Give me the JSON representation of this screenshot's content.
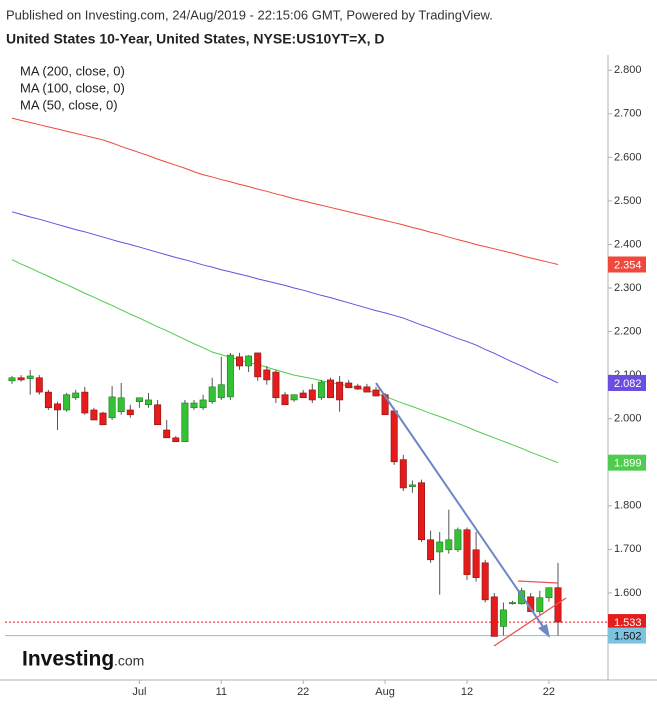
{
  "chart_data": {
    "type": "candlestick",
    "subtitle": "Published on Investing.com, 24/Aug/2019 - 22:15:06 GMT, Powered by TradingView.",
    "title": "United States 10-Year, United States, NYSE:US10YT=X, D",
    "categories": [
      null,
      null,
      null,
      null,
      null,
      null,
      null,
      null,
      null,
      null,
      null,
      null,
      null,
      null,
      "Jul",
      null,
      null,
      null,
      null,
      null,
      null,
      null,
      null,
      "11",
      null,
      null,
      null,
      null,
      null,
      null,
      null,
      null,
      "22",
      null,
      null,
      null,
      null,
      null,
      null,
      null,
      null,
      "Aug",
      null,
      null,
      null,
      null,
      null,
      null,
      null,
      null,
      "12",
      null,
      null,
      null,
      null,
      null,
      null,
      null,
      null,
      "22",
      null
    ],
    "open": [
      2.087,
      2.094,
      2.092,
      2.094,
      2.061,
      2.034,
      2.02,
      2.048,
      2.061,
      2.02,
      2.013,
      2.002,
      2.016,
      2.02,
      2.039,
      2.032,
      2.032,
      1.974,
      1.956,
      1.947,
      2.025,
      2.025,
      2.039,
      2.048,
      2.05,
      2.142,
      2.121,
      2.151,
      2.112,
      2.107,
      2.055,
      2.043,
      2.059,
      2.066,
      2.048,
      2.089,
      2.084,
      2.082,
      2.075,
      2.073,
      2.066,
      2.055,
      2.018,
      1.906,
      1.844,
      1.853,
      1.722,
      1.694,
      1.699,
      1.699,
      1.745,
      1.699,
      1.669,
      1.591,
      1.523,
      1.575,
      1.575,
      1.591,
      1.557,
      1.589,
      1.612
    ],
    "high": [
      2.098,
      2.1,
      2.112,
      2.1,
      2.066,
      2.039,
      2.059,
      2.066,
      2.073,
      2.025,
      2.016,
      2.075,
      2.082,
      2.032,
      2.048,
      2.059,
      2.043,
      1.997,
      1.96,
      2.043,
      2.043,
      2.055,
      2.094,
      2.142,
      2.151,
      2.151,
      2.146,
      2.151,
      2.121,
      2.112,
      2.061,
      2.055,
      2.066,
      2.08,
      2.089,
      2.094,
      2.098,
      2.089,
      2.08,
      2.08,
      2.073,
      2.059,
      2.025,
      1.917,
      1.858,
      1.86,
      1.743,
      1.74,
      1.791,
      1.75,
      1.75,
      1.74,
      1.676,
      1.6,
      1.578,
      1.582,
      1.612,
      1.6,
      1.605,
      1.612,
      1.669
    ],
    "low": [
      2.08,
      2.085,
      2.055,
      2.055,
      2.02,
      1.974,
      2.016,
      2.043,
      2.009,
      1.997,
      1.986,
      1.997,
      2.009,
      2.002,
      2.025,
      2.025,
      1.986,
      1.956,
      1.947,
      1.947,
      2.02,
      2.02,
      2.034,
      2.043,
      2.043,
      2.112,
      2.107,
      2.087,
      2.078,
      2.036,
      2.032,
      2.039,
      2.048,
      2.036,
      2.043,
      2.048,
      2.016,
      2.075,
      2.066,
      2.061,
      2.052,
      2.009,
      1.894,
      1.834,
      1.83,
      1.717,
      1.669,
      1.596,
      1.69,
      1.694,
      1.63,
      1.626,
      1.578,
      1.502,
      1.502,
      1.573,
      1.573,
      1.557,
      1.55,
      1.58,
      1.502
    ],
    "close": [
      2.094,
      2.089,
      2.098,
      2.061,
      2.025,
      2.02,
      2.055,
      2.059,
      2.013,
      1.997,
      1.986,
      2.05,
      2.048,
      2.009,
      2.048,
      2.043,
      1.986,
      1.956,
      1.947,
      2.036,
      2.036,
      2.043,
      2.073,
      2.078,
      2.146,
      2.121,
      2.144,
      2.096,
      2.089,
      2.048,
      2.032,
      2.055,
      2.048,
      2.043,
      2.084,
      2.048,
      2.043,
      2.071,
      2.068,
      2.061,
      2.052,
      2.009,
      1.901,
      1.841,
      1.848,
      1.722,
      1.676,
      1.717,
      1.722,
      1.745,
      1.642,
      1.635,
      1.584,
      1.5,
      1.561,
      1.578,
      1.605,
      1.557,
      1.589,
      1.612,
      1.533
    ],
    "up_color": "#33c233",
    "down_color": "#e41c1c",
    "series": [
      {
        "name": "MA (200, close, 0)",
        "color": "#f0483c",
        "values": [
          2.69,
          2.685,
          2.68,
          2.675,
          2.67,
          2.665,
          2.66,
          2.655,
          2.65,
          2.645,
          2.64,
          2.633,
          2.625,
          2.618,
          2.611,
          2.604,
          2.596,
          2.589,
          2.582,
          2.575,
          2.567,
          2.56,
          2.555,
          2.549,
          2.544,
          2.538,
          2.533,
          2.527,
          2.522,
          2.516,
          2.511,
          2.505,
          2.5,
          2.495,
          2.49,
          2.485,
          2.48,
          2.475,
          2.47,
          2.465,
          2.46,
          2.455,
          2.45,
          2.445,
          2.439,
          2.434,
          2.428,
          2.423,
          2.417,
          2.411,
          2.406,
          2.4,
          2.395,
          2.39,
          2.385,
          2.38,
          2.374,
          2.369,
          2.364,
          2.359,
          2.354
        ]
      },
      {
        "name": "MA (100, close, 0)",
        "color": "#6b4de0",
        "values": [
          2.475,
          2.469,
          2.463,
          2.458,
          2.452,
          2.446,
          2.44,
          2.434,
          2.429,
          2.423,
          2.417,
          2.411,
          2.405,
          2.4,
          2.394,
          2.388,
          2.382,
          2.376,
          2.37,
          2.365,
          2.359,
          2.353,
          2.348,
          2.342,
          2.337,
          2.332,
          2.327,
          2.321,
          2.316,
          2.311,
          2.306,
          2.3,
          2.295,
          2.289,
          2.283,
          2.278,
          2.272,
          2.266,
          2.26,
          2.254,
          2.248,
          2.243,
          2.237,
          2.231,
          2.223,
          2.215,
          2.208,
          2.2,
          2.192,
          2.184,
          2.177,
          2.169,
          2.159,
          2.15,
          2.14,
          2.13,
          2.121,
          2.111,
          2.101,
          2.092,
          2.082
        ]
      },
      {
        "name": "MA (50, close, 0)",
        "color": "#4fcc4f",
        "values": [
          2.365,
          2.355,
          2.346,
          2.336,
          2.327,
          2.317,
          2.308,
          2.298,
          2.288,
          2.279,
          2.269,
          2.26,
          2.25,
          2.24,
          2.231,
          2.221,
          2.211,
          2.202,
          2.192,
          2.182,
          2.172,
          2.163,
          2.153,
          2.147,
          2.141,
          2.135,
          2.129,
          2.124,
          2.118,
          2.112,
          2.106,
          2.1,
          2.096,
          2.092,
          2.087,
          2.083,
          2.079,
          2.075,
          2.07,
          2.066,
          2.058,
          2.051,
          2.043,
          2.035,
          2.028,
          2.02,
          2.012,
          2.005,
          1.997,
          1.989,
          1.981,
          1.972,
          1.964,
          1.956,
          1.948,
          1.94,
          1.932,
          1.923,
          1.915,
          1.907,
          1.899
        ]
      }
    ],
    "horizontal_line": {
      "value": 1.502,
      "color": "#7cc3e0"
    },
    "ylim": [
      1.4,
      2.835
    ],
    "yticks": [
      {
        "value": 1.6,
        "label": "1.600"
      },
      {
        "value": 1.7,
        "label": "1.700"
      },
      {
        "value": 1.8,
        "label": "1.800"
      },
      {
        "value": 1.9,
        "label": "1.900"
      },
      {
        "value": 2.0,
        "label": "2.000"
      },
      {
        "value": 2.1,
        "label": "2.100"
      },
      {
        "value": 2.2,
        "label": "2.200"
      },
      {
        "value": 2.3,
        "label": "2.300"
      },
      {
        "value": 2.4,
        "label": "2.400"
      },
      {
        "value": 2.5,
        "label": "2.500"
      },
      {
        "value": 2.6,
        "label": "2.600"
      },
      {
        "value": 2.7,
        "label": "2.700"
      },
      {
        "value": 2.8,
        "label": "2.800"
      }
    ]
  },
  "watermark": {
    "name": "Investing",
    "suffix": ".com"
  }
}
